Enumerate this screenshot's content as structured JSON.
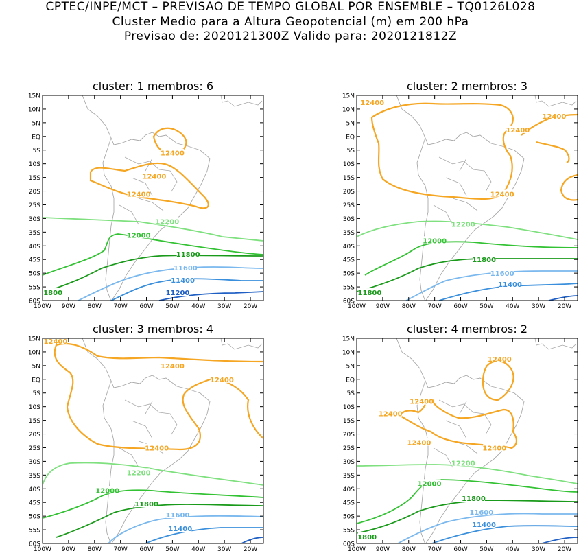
{
  "header": {
    "line1": "CPTEC/INPE/MCT – PREVISAO DE TEMPO GLOBAL POR ENSEMBLE – TQ0126L028",
    "line2": "Cluster Medio para a Altura Geopotencial (m) em 200 hPa",
    "line3": "Previsao de: 2020121300Z    Valido para: 2020121812Z"
  },
  "axes": {
    "lat_ticks": [
      "15N",
      "10N",
      "5N",
      "EQ",
      "5S",
      "10S",
      "15S",
      "20S",
      "25S",
      "30S",
      "35S",
      "40S",
      "45S",
      "50S",
      "55S",
      "60S"
    ],
    "lon_ticks": [
      "100W",
      "90W",
      "80W",
      "70W",
      "60W",
      "50W",
      "40W",
      "30W",
      "20W"
    ],
    "lon_range": [
      -100,
      -15
    ],
    "lat_range": [
      -60,
      15
    ]
  },
  "colors": {
    "c12400": "#f5a623",
    "c12200": "#7ee07e",
    "c12000": "#33c233",
    "c11800": "#1a9a1a",
    "c11600": "#7ab8ee",
    "c11400": "#3a8fdc",
    "c11200": "#1f5fc4",
    "coast": "#a8a8a8"
  },
  "panels": [
    {
      "title": "cluster: 1   membros: 6",
      "labels": [
        {
          "text": "12400",
          "lon": -50,
          "lat": -6
        },
        {
          "text": "12400",
          "lon": -57,
          "lat": -14.5
        },
        {
          "text": "12400",
          "lon": -63,
          "lat": -21
        },
        {
          "text": "12200",
          "lon": -52,
          "lat": -31
        },
        {
          "text": "12000",
          "lon": -63,
          "lat": -36
        },
        {
          "text": "11800",
          "lon": -44,
          "lat": -43
        },
        {
          "text": "11600",
          "lon": -45,
          "lat": -48
        },
        {
          "text": "11400",
          "lon": -46,
          "lat": -52.5
        },
        {
          "text": "11200",
          "lon": -48,
          "lat": -57
        },
        {
          "text": "1800",
          "lon": -96,
          "lat": -57
        }
      ]
    },
    {
      "title": "cluster: 2   membros: 3",
      "labels": [
        {
          "text": "12400",
          "lon": -94,
          "lat": 12.5
        },
        {
          "text": "12400",
          "lon": -38,
          "lat": 2.5
        },
        {
          "text": "12400",
          "lon": -24,
          "lat": 7.5
        },
        {
          "text": "12400",
          "lon": -44,
          "lat": -21
        },
        {
          "text": "12200",
          "lon": -59,
          "lat": -32
        },
        {
          "text": "12000",
          "lon": -70,
          "lat": -38
        },
        {
          "text": "11800",
          "lon": -51,
          "lat": -45
        },
        {
          "text": "11600",
          "lon": -44,
          "lat": -50
        },
        {
          "text": "11400",
          "lon": -41,
          "lat": -54
        },
        {
          "text": "11800",
          "lon": -95,
          "lat": -57
        }
      ]
    },
    {
      "title": "cluster: 3   membros: 4",
      "labels": [
        {
          "text": "12400",
          "lon": -95,
          "lat": 14
        },
        {
          "text": "12400",
          "lon": -50,
          "lat": 5
        },
        {
          "text": "12400",
          "lon": -31,
          "lat": 0
        },
        {
          "text": "12400",
          "lon": -56,
          "lat": -25
        },
        {
          "text": "12200",
          "lon": -63,
          "lat": -34
        },
        {
          "text": "12000",
          "lon": -75,
          "lat": -40.5
        },
        {
          "text": "11800",
          "lon": -60,
          "lat": -45.5
        },
        {
          "text": "11600",
          "lon": -48,
          "lat": -49.5
        },
        {
          "text": "11400",
          "lon": -47,
          "lat": -54.5
        }
      ]
    },
    {
      "title": "cluster: 4   membros: 2",
      "labels": [
        {
          "text": "12400",
          "lon": -45,
          "lat": 7.5
        },
        {
          "text": "12400",
          "lon": -75,
          "lat": -8
        },
        {
          "text": "12400",
          "lon": -87,
          "lat": -12.5
        },
        {
          "text": "12400",
          "lon": -76,
          "lat": -23
        },
        {
          "text": "12400",
          "lon": -47,
          "lat": -25
        },
        {
          "text": "12200",
          "lon": -59,
          "lat": -30.5
        },
        {
          "text": "12000",
          "lon": -72,
          "lat": -38
        },
        {
          "text": "11800",
          "lon": -55,
          "lat": -43.5
        },
        {
          "text": "11600",
          "lon": -52,
          "lat": -48.5
        },
        {
          "text": "11400",
          "lon": -51,
          "lat": -53
        },
        {
          "text": "1800",
          "lon": -96,
          "lat": -57.5
        }
      ]
    }
  ]
}
